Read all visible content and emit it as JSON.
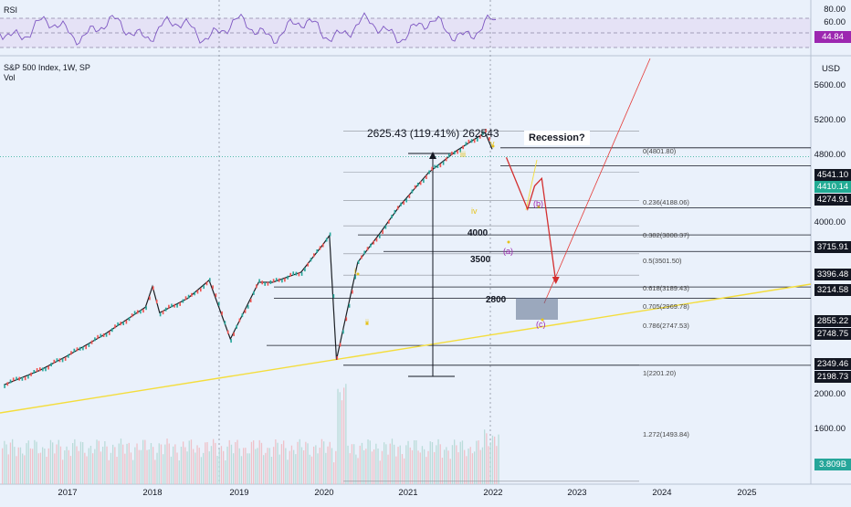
{
  "rsi": {
    "label": "RSI",
    "top_level": "80.00",
    "mid_level": "60.00",
    "value_tag": "44.84",
    "value_color": "#9c27b0"
  },
  "header": {
    "symbol_line": "S&P 500 Index, 1W, SP",
    "vol_label": "Vol",
    "currency": "USD"
  },
  "y_ticks": [
    "5600.00",
    "5200.00",
    "4800.00",
    "4000.00",
    "2000.00",
    "1600.00"
  ],
  "x_ticks": [
    "2017",
    "2018",
    "2019",
    "2020",
    "2021",
    "2022",
    "2023",
    "2024",
    "2025"
  ],
  "price_tags": [
    {
      "text": "4541.10",
      "style": "dark",
      "price": 4541.1
    },
    {
      "text": "4410.14",
      "style": "green",
      "price": 4410.14
    },
    {
      "text": "4274.91",
      "style": "dark",
      "price": 4274.91
    },
    {
      "text": "3715.91",
      "style": "dark",
      "price": 3715.91
    },
    {
      "text": "3396.48",
      "style": "dark",
      "price": 3396.48
    },
    {
      "text": "3214.58",
      "style": "dark",
      "price": 3214.58
    },
    {
      "text": "2855.22",
      "style": "dark",
      "price": 2855.22
    },
    {
      "text": "2748.75",
      "style": "dark",
      "price": 2748.75
    },
    {
      "text": "2349.46",
      "style": "dark",
      "price": 2349.46
    },
    {
      "text": "2198.73",
      "style": "dark",
      "price": 2198.73
    }
  ],
  "vol_tag": "3.809B",
  "fib_levels": [
    {
      "label": "0(4801.80)",
      "price": 4801.8
    },
    {
      "label": "0.236(4188.06)",
      "price": 4188.06
    },
    {
      "label": "0.382(3808.37)",
      "price": 3808.37
    },
    {
      "label": "0.5(3501.50)",
      "price": 3501.5
    },
    {
      "label": "0.618(3189.43)",
      "price": 3189.43
    },
    {
      "label": "0.705(2969.78)",
      "price": 2969.78
    },
    {
      "label": "0.786(2747.53)",
      "price": 2747.53
    },
    {
      "label": "1(2201.20)",
      "price": 2201.2
    },
    {
      "label": "1.272(1493.84)",
      "price": 1493.84
    }
  ],
  "annotations": {
    "measure": "2625.43 (119.41%) 262543",
    "recession": "Recession?",
    "lvl_4000": "4000",
    "lvl_3500": "3500",
    "lvl_2800": "2800",
    "wave_i": "i",
    "wave_ii": "ii",
    "wave_iii": "iii",
    "wave_iv": "iv",
    "wave_v": "v",
    "wave_a": "(a)",
    "wave_b": "(b)",
    "wave_c": "(c)"
  },
  "chart_data": {
    "type": "line",
    "title": "S&P 500 Index, 1W, SP",
    "x": [
      "2016-04",
      "2016-09",
      "2017-01",
      "2017-06",
      "2017-12",
      "2018-01",
      "2018-02",
      "2018-06",
      "2018-09",
      "2018-12",
      "2019-04",
      "2019-06",
      "2019-10",
      "2020-01",
      "2020-02",
      "2020-03",
      "2020-06",
      "2020-09",
      "2020-12",
      "2021-04",
      "2021-08",
      "2021-12",
      "2022-01",
      "2022-03",
      "2022-05",
      "2022-06",
      "2022-07",
      "2022-08",
      "2022-10"
    ],
    "series": [
      {
        "name": "S&P 500",
        "values": [
          2060,
          2160,
          2270,
          2430,
          2670,
          2860,
          2620,
          2750,
          2920,
          2400,
          2900,
          2900,
          3000,
          3280,
          3390,
          2240,
          3100,
          3400,
          3750,
          4180,
          4500,
          4780,
          4520,
          4400,
          3920,
          3700,
          4000,
          4100,
          2900
        ]
      }
    ],
    "ylim": [
      1400,
      5800
    ],
    "ylabel": "USD",
    "log_scale": true
  }
}
